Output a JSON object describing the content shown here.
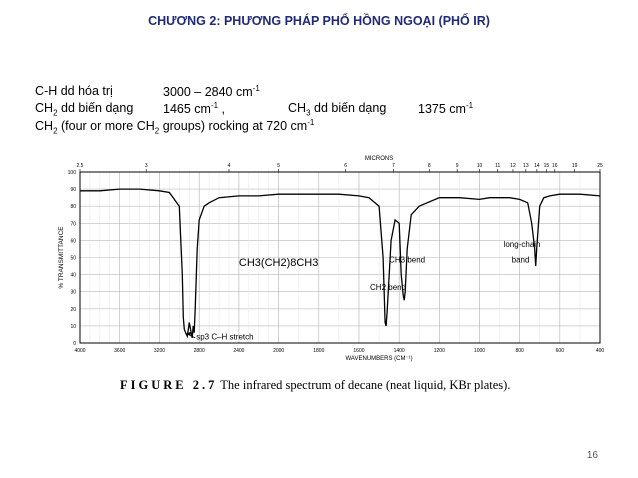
{
  "slide": {
    "title": "CHƯƠNG 2: PHƯƠNG PHÁP PHỔ HỒNG NGOẠI (PHỔ IR)",
    "page_number": "16"
  },
  "notes": {
    "line1_label": "C-H dd hóa trị",
    "line1_value": "3000 – 2840 cm",
    "line2_label_a": "CH",
    "line2_label_b": " dd biến dạng",
    "line2_value": "1465 cm",
    "line2_comma": " ,",
    "line2_right_label_a": "CH",
    "line2_right_label_b": " dd biến dạng",
    "line2_right_value": "1375 cm",
    "line3_a": "CH",
    "line3_b": " (four or more CH",
    "line3_c": " groups) rocking at 720 cm",
    "sub2": "2",
    "sub3": "3",
    "sup": "-1"
  },
  "caption": {
    "figure": "FIGURE 2.7",
    "text": "The infrared spectrum of decane (neat liquid, KBr plates)."
  },
  "chart_data": {
    "type": "line",
    "title": "",
    "xlabel": "WAVENUMBERS (CM⁻¹)",
    "ylabel": "% TRANSMITTANCE",
    "top_axis_label": "MICRONS",
    "x_ticks": [
      "4000",
      "3600",
      "3200",
      "2800",
      "2400",
      "2000",
      "1800",
      "1600",
      "1400",
      "1200",
      "1000",
      "800",
      "600",
      "400"
    ],
    "micron_ticks": [
      "2.5",
      "3",
      "4",
      "5",
      "6",
      "7",
      "8",
      "9",
      "10",
      "11",
      "12",
      "13",
      "14",
      "15",
      "16",
      "19",
      "25"
    ],
    "y_ticks": [
      "0",
      "10",
      "20",
      "30",
      "40",
      "50",
      "60",
      "70",
      "80",
      "90",
      "100"
    ],
    "ylim": [
      0,
      100
    ],
    "grid": true,
    "annotations": [
      {
        "text": "CH3(CH2)8CH3"
      },
      {
        "text": "sp3 C–H stretch"
      },
      {
        "text": "CH3 bend"
      },
      {
        "text": "CH2 bend"
      },
      {
        "text": "long-chain"
      },
      {
        "text": "band"
      }
    ],
    "series": [
      {
        "x": [
          4000,
          3800,
          3600,
          3400,
          3200,
          3100,
          3000,
          2970,
          2960,
          2950,
          2930,
          2920,
          2900,
          2880,
          2870,
          2860,
          2850,
          2840,
          2820,
          2800,
          2750,
          2700,
          2600,
          2400,
          2200,
          2000,
          1900,
          1800,
          1700,
          1600,
          1550,
          1500,
          1480,
          1470,
          1465,
          1460,
          1440,
          1420,
          1400,
          1390,
          1380,
          1375,
          1370,
          1360,
          1340,
          1300,
          1200,
          1100,
          1000,
          950,
          900,
          850,
          800,
          760,
          740,
          725,
          720,
          715,
          700,
          680,
          650,
          600,
          500,
          400
        ],
        "y": [
          89,
          89,
          90,
          90,
          89,
          88,
          80,
          40,
          15,
          8,
          5,
          4,
          12,
          6,
          3,
          10,
          6,
          20,
          55,
          72,
          80,
          82,
          85,
          86,
          86,
          87,
          87,
          87,
          87,
          86,
          85,
          80,
          50,
          12,
          10,
          18,
          60,
          72,
          70,
          40,
          28,
          25,
          30,
          55,
          75,
          80,
          85,
          85,
          84,
          85,
          85,
          85,
          84,
          82,
          70,
          55,
          45,
          55,
          80,
          85,
          86,
          87,
          87,
          86
        ]
      }
    ]
  }
}
